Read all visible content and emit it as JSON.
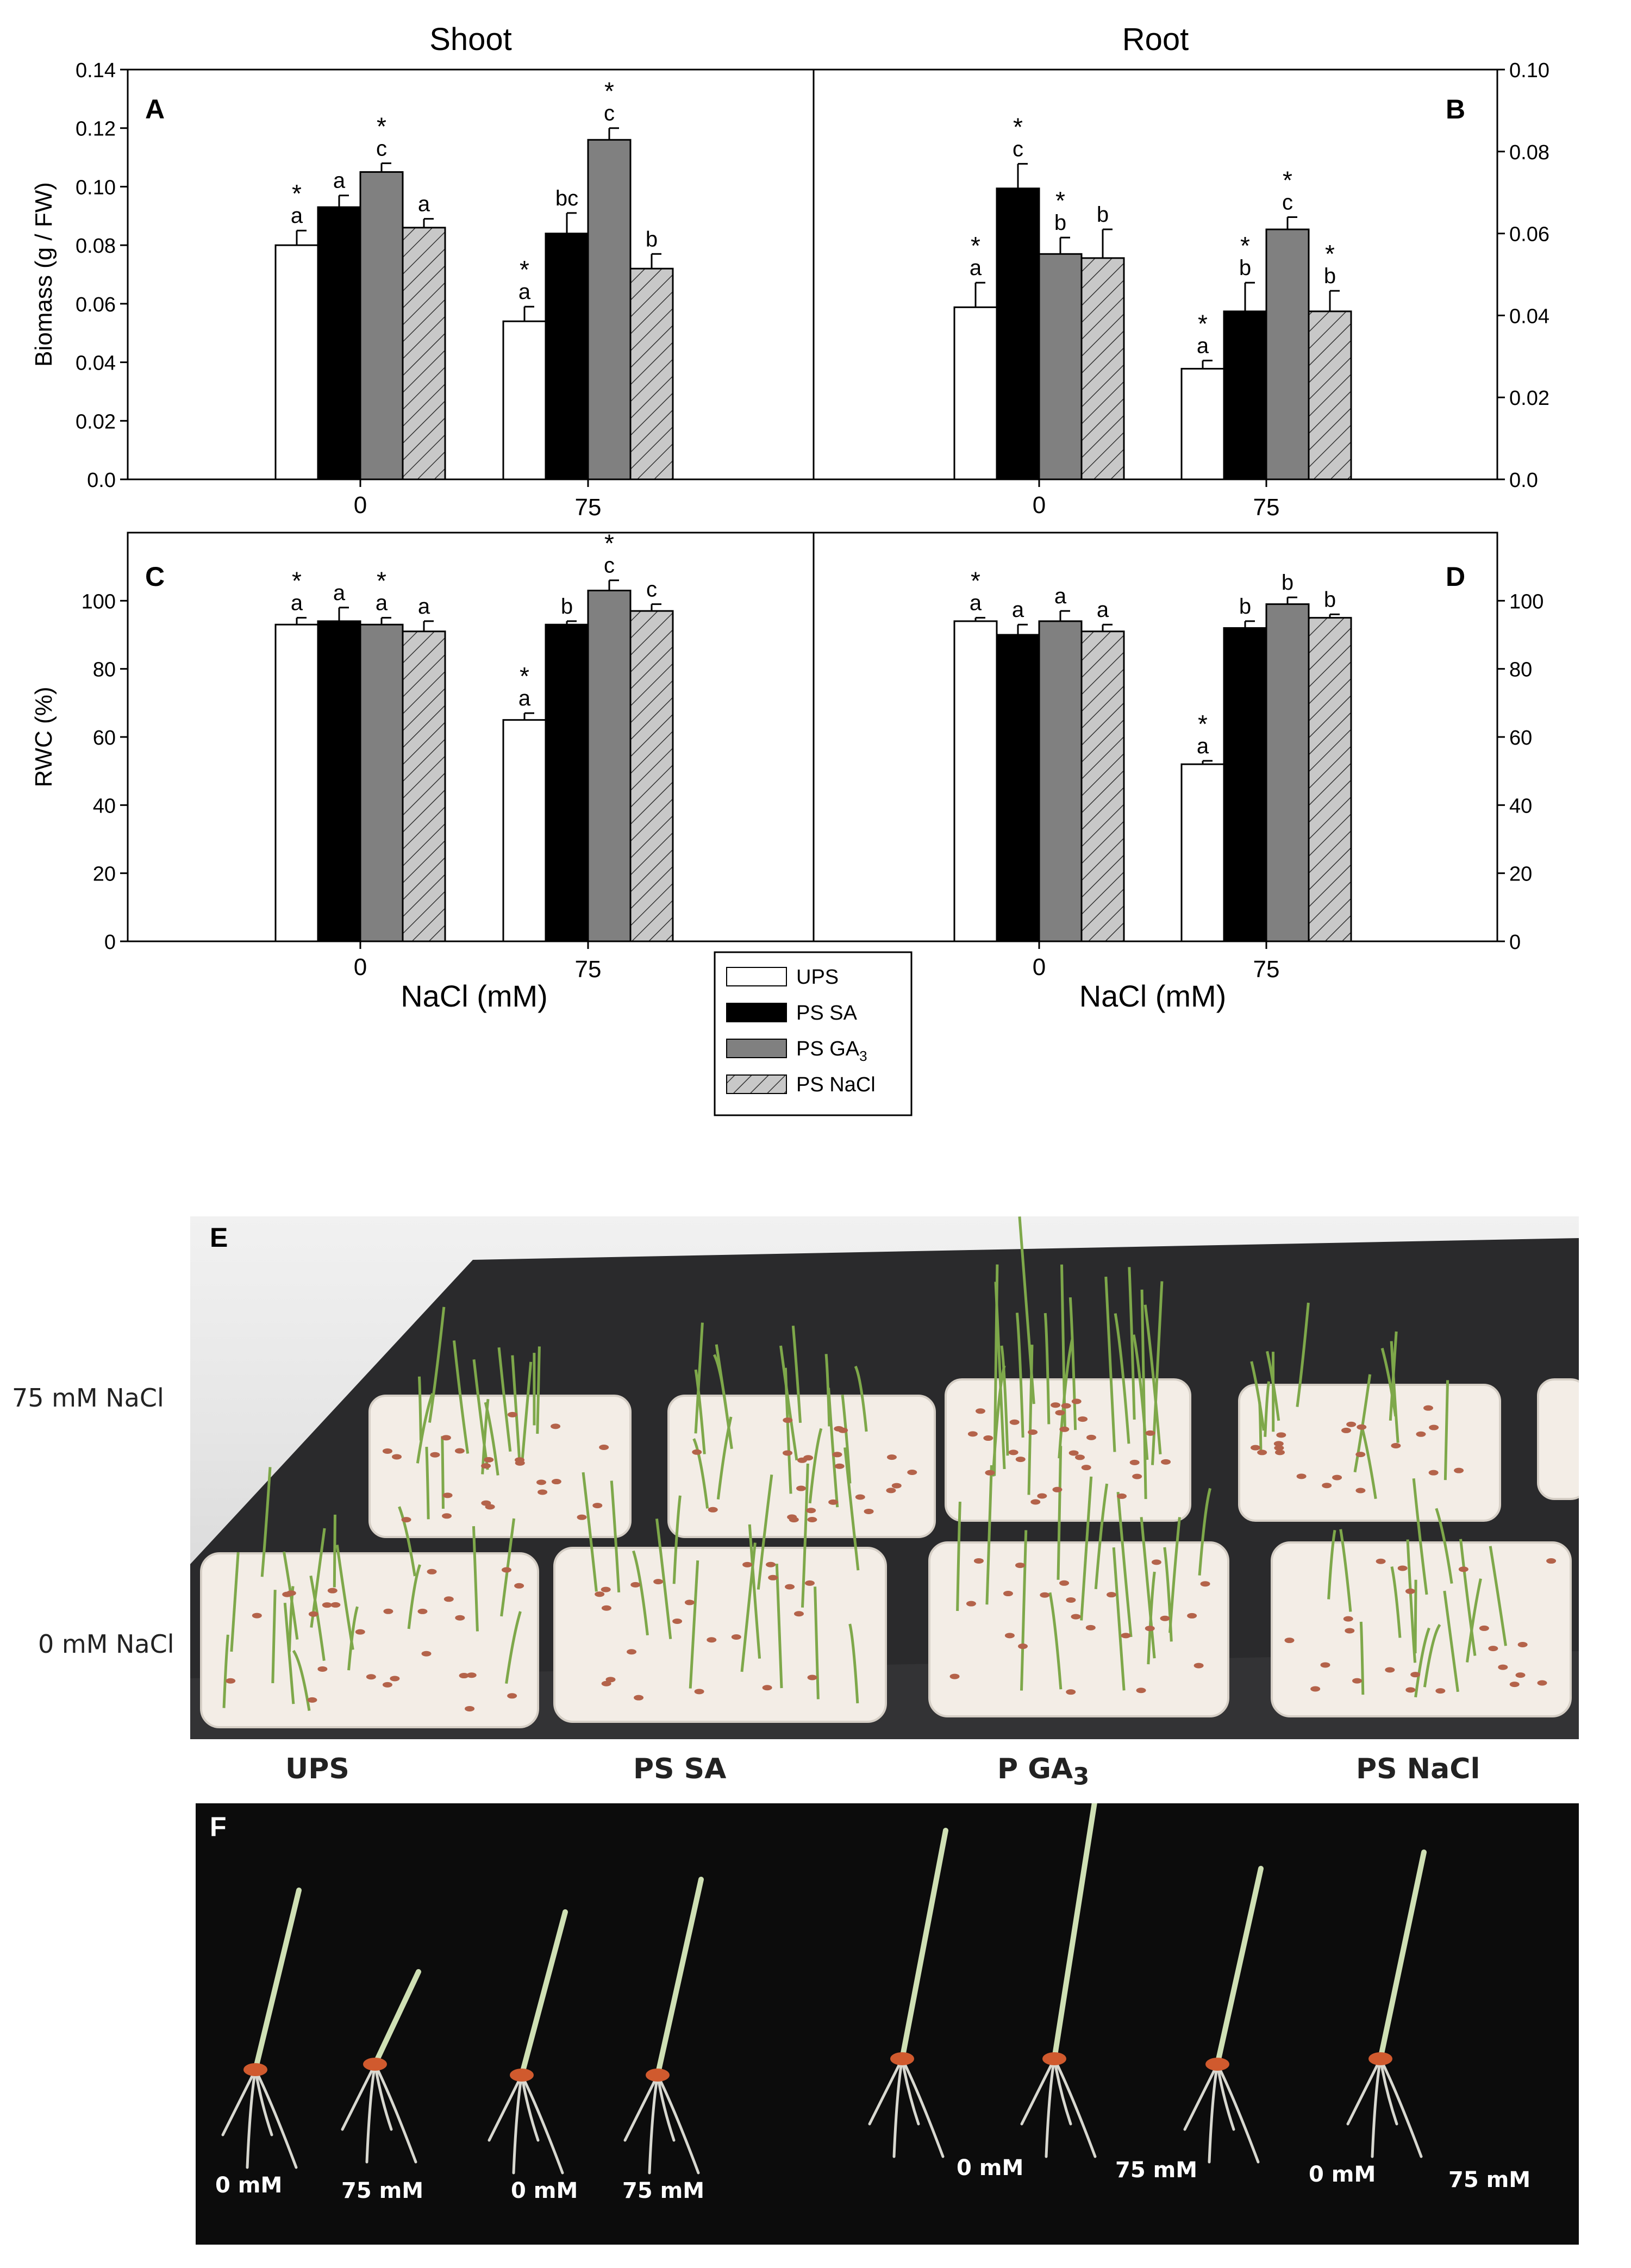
{
  "chart_data": [
    {
      "type": "bar",
      "panel": "A",
      "column_title": "Shoot",
      "ylabel": "Biomass (g / FW)",
      "ylim": [
        0,
        0.14
      ],
      "yticks": [
        "0.0",
        "0.02",
        "0.04",
        "0.06",
        "0.08",
        "0.10",
        "0.12",
        "0.14"
      ],
      "categories": [
        "0",
        "75"
      ],
      "series": [
        {
          "name": "UPS",
          "values": [
            0.08,
            0.054
          ],
          "errors": [
            0.005,
            0.005
          ],
          "labels": [
            "a",
            "a"
          ],
          "stars": [
            true,
            true
          ]
        },
        {
          "name": "PS SA",
          "values": [
            0.093,
            0.084
          ],
          "errors": [
            0.004,
            0.007
          ],
          "labels": [
            "a",
            "bc"
          ],
          "stars": [
            false,
            false
          ]
        },
        {
          "name": "PS GA3",
          "values": [
            0.105,
            0.116
          ],
          "errors": [
            0.003,
            0.004
          ],
          "labels": [
            "c",
            "c"
          ],
          "stars": [
            true,
            true
          ]
        },
        {
          "name": "PS NaCl",
          "values": [
            0.086,
            0.072
          ],
          "errors": [
            0.003,
            0.005
          ],
          "labels": [
            "a",
            "b"
          ],
          "stars": [
            false,
            false
          ]
        }
      ]
    },
    {
      "type": "bar",
      "panel": "B",
      "column_title": "Root",
      "ylim": [
        0,
        0.1
      ],
      "yticks": [
        "0.0",
        "0.02",
        "0.04",
        "0.06",
        "0.08",
        "0.10"
      ],
      "categories": [
        "0",
        "75"
      ],
      "series": [
        {
          "name": "UPS",
          "values": [
            0.042,
            0.027
          ],
          "errors": [
            0.006,
            0.002
          ],
          "labels": [
            "a",
            "a"
          ],
          "stars": [
            true,
            true
          ]
        },
        {
          "name": "PS SA",
          "values": [
            0.071,
            0.041
          ],
          "errors": [
            0.006,
            0.007
          ],
          "labels": [
            "c",
            "b"
          ],
          "stars": [
            true,
            true
          ]
        },
        {
          "name": "PS GA3",
          "values": [
            0.055,
            0.061
          ],
          "errors": [
            0.004,
            0.003
          ],
          "labels": [
            "b",
            "c"
          ],
          "stars": [
            true,
            true
          ]
        },
        {
          "name": "PS NaCl",
          "values": [
            0.054,
            0.041
          ],
          "errors": [
            0.007,
            0.005
          ],
          "labels": [
            "b",
            "b"
          ],
          "stars": [
            false,
            true
          ]
        }
      ]
    },
    {
      "type": "bar",
      "panel": "C",
      "ylabel": "RWC (%)",
      "xlabel": "NaCl (mM)",
      "ylim": [
        0,
        120
      ],
      "yticks": [
        "0",
        "20",
        "40",
        "60",
        "80",
        "100"
      ],
      "categories": [
        "0",
        "75"
      ],
      "series": [
        {
          "name": "UPS",
          "values": [
            93,
            65
          ],
          "errors": [
            2,
            2
          ],
          "labels": [
            "a",
            "a"
          ],
          "stars": [
            true,
            true
          ]
        },
        {
          "name": "PS SA",
          "values": [
            94,
            93
          ],
          "errors": [
            4,
            1
          ],
          "labels": [
            "a",
            "b"
          ],
          "stars": [
            false,
            false
          ]
        },
        {
          "name": "PS GA3",
          "values": [
            93,
            103
          ],
          "errors": [
            2,
            3
          ],
          "labels": [
            "a",
            "c"
          ],
          "stars": [
            true,
            true
          ]
        },
        {
          "name": "PS NaCl",
          "values": [
            91,
            97
          ],
          "errors": [
            3,
            2
          ],
          "labels": [
            "a",
            "c"
          ],
          "stars": [
            false,
            false
          ]
        }
      ]
    },
    {
      "type": "bar",
      "panel": "D",
      "xlabel": "NaCl (mM)",
      "ylim": [
        0,
        120
      ],
      "yticks": [
        "0",
        "20",
        "40",
        "60",
        "80",
        "100"
      ],
      "categories": [
        "0",
        "75"
      ],
      "series": [
        {
          "name": "UPS",
          "values": [
            94,
            52
          ],
          "errors": [
            1,
            1
          ],
          "labels": [
            "a",
            "a"
          ],
          "stars": [
            true,
            true
          ]
        },
        {
          "name": "PS SA",
          "values": [
            90,
            92
          ],
          "errors": [
            3,
            2
          ],
          "labels": [
            "a",
            "b"
          ],
          "stars": [
            false,
            false
          ]
        },
        {
          "name": "PS GA3",
          "values": [
            94,
            99
          ],
          "errors": [
            3,
            2
          ],
          "labels": [
            "a",
            "b"
          ],
          "stars": [
            false,
            false
          ]
        },
        {
          "name": "PS NaCl",
          "values": [
            91,
            95
          ],
          "errors": [
            2,
            1
          ],
          "labels": [
            "a",
            "b"
          ],
          "stars": [
            false,
            false
          ]
        }
      ]
    }
  ],
  "legend": {
    "items": [
      {
        "label": "UPS",
        "sub": ""
      },
      {
        "label": "PS SA",
        "sub": ""
      },
      {
        "label": "PS GA",
        "sub": "3"
      },
      {
        "label": "PS NaCl",
        "sub": ""
      }
    ]
  },
  "colors": {
    "UPS": "#ffffff",
    "PS SA": "#000000",
    "PS GA3": "#808080",
    "PS NaCl": "#c8c8c8"
  },
  "photo_e": {
    "letter": "E",
    "row_labels": [
      "75 mM NaCl",
      "0 mM NaCl"
    ],
    "col_labels": [
      {
        "text": "UPS",
        "sub": ""
      },
      {
        "text": "PS SA",
        "sub": ""
      },
      {
        "text": "P GA",
        "sub": "3"
      },
      {
        "text": "PS NaCl",
        "sub": ""
      }
    ]
  },
  "photo_f": {
    "letter": "F",
    "labels": [
      "0 mM",
      "75 mM",
      "0 mM",
      "75 mM",
      "0 mM",
      "75 mM",
      "0 mM",
      "75 mM"
    ]
  }
}
